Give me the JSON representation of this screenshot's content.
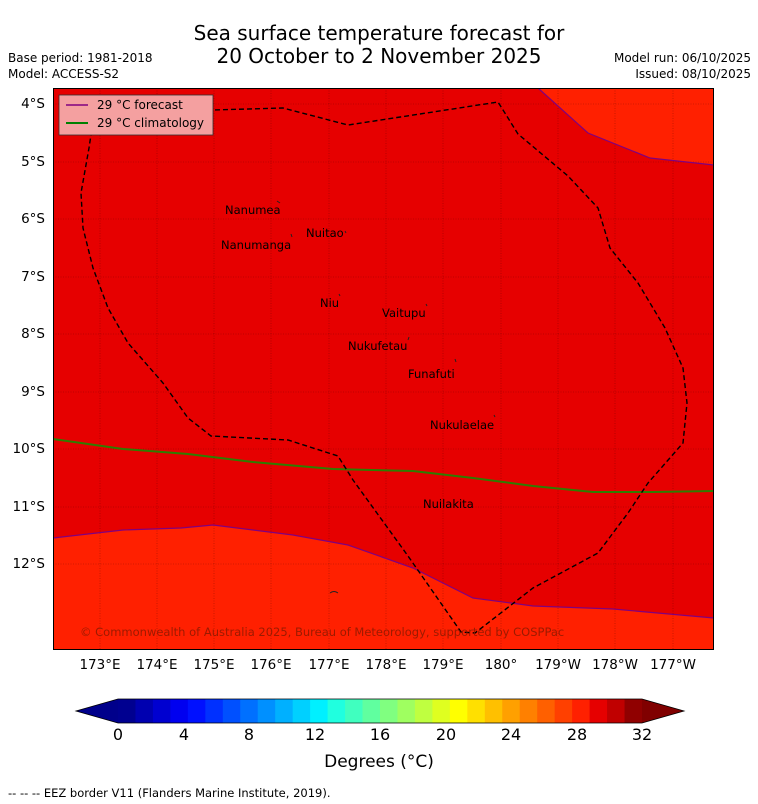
{
  "header": {
    "title_line1": "Sea surface temperature forecast for",
    "title_line2": "20 October to 2 November 2025",
    "base_period": "Base period: 1981-2018",
    "model": "Model: ACCESS-S2",
    "model_run": "Model run: 06/10/2025",
    "issued": "Issued: 08/10/2025"
  },
  "map": {
    "lat_labels": [
      "4°S",
      "5°S",
      "6°S",
      "7°S",
      "8°S",
      "9°S",
      "10°S",
      "11°S",
      "12°S"
    ],
    "lon_labels": [
      "173°E",
      "174°E",
      "175°E",
      "176°E",
      "177°E",
      "178°E",
      "179°E",
      "180°",
      "179°W",
      "178°W",
      "177°W"
    ],
    "places": [
      {
        "name": "Nanumea"
      },
      {
        "name": "Nuitao"
      },
      {
        "name": "Nanumanga"
      },
      {
        "name": "Niu"
      },
      {
        "name": "Vaitupu"
      },
      {
        "name": "Nukufetau"
      },
      {
        "name": "Funafuti"
      },
      {
        "name": "Nukulaelae"
      },
      {
        "name": "Nuilakita"
      }
    ],
    "legend": {
      "forecast": "29 °C  forecast",
      "climatology": "29 °C  climatology"
    },
    "copyright": "© Commonwealth of Australia 2025, Bureau of Meteorology, supported by COSPPac",
    "colors": {
      "sst_above_30": "#ff2000",
      "sst_29_30": "#e60000",
      "forecast_line": "#800080",
      "climatology_line": "#008000"
    }
  },
  "colorbar": {
    "ticks": [
      "0",
      "4",
      "8",
      "12",
      "16",
      "20",
      "24",
      "28",
      "32"
    ],
    "units": "Degrees ($^\\circ$C)",
    "units_display": "Degrees (°C)",
    "colors": [
      "#000090",
      "#0000b0",
      "#0000d0",
      "#0000f0",
      "#0010ff",
      "#0030ff",
      "#0050ff",
      "#0070ff",
      "#0090ff",
      "#00b0ff",
      "#00d0ff",
      "#00f0ff",
      "#20ffdf",
      "#40ffbf",
      "#60ff9f",
      "#80ff80",
      "#9fff60",
      "#bfff40",
      "#dfff20",
      "#ffff00",
      "#ffe000",
      "#ffc000",
      "#ffa000",
      "#ff8000",
      "#ff6000",
      "#ff4000",
      "#ff2000",
      "#e60000",
      "#c00000",
      "#900000"
    ],
    "under_color": "#00008b",
    "over_color": "#800000"
  },
  "footer": "-- -- -- EEZ border V11 (Flanders Marine Institute, 2019)."
}
